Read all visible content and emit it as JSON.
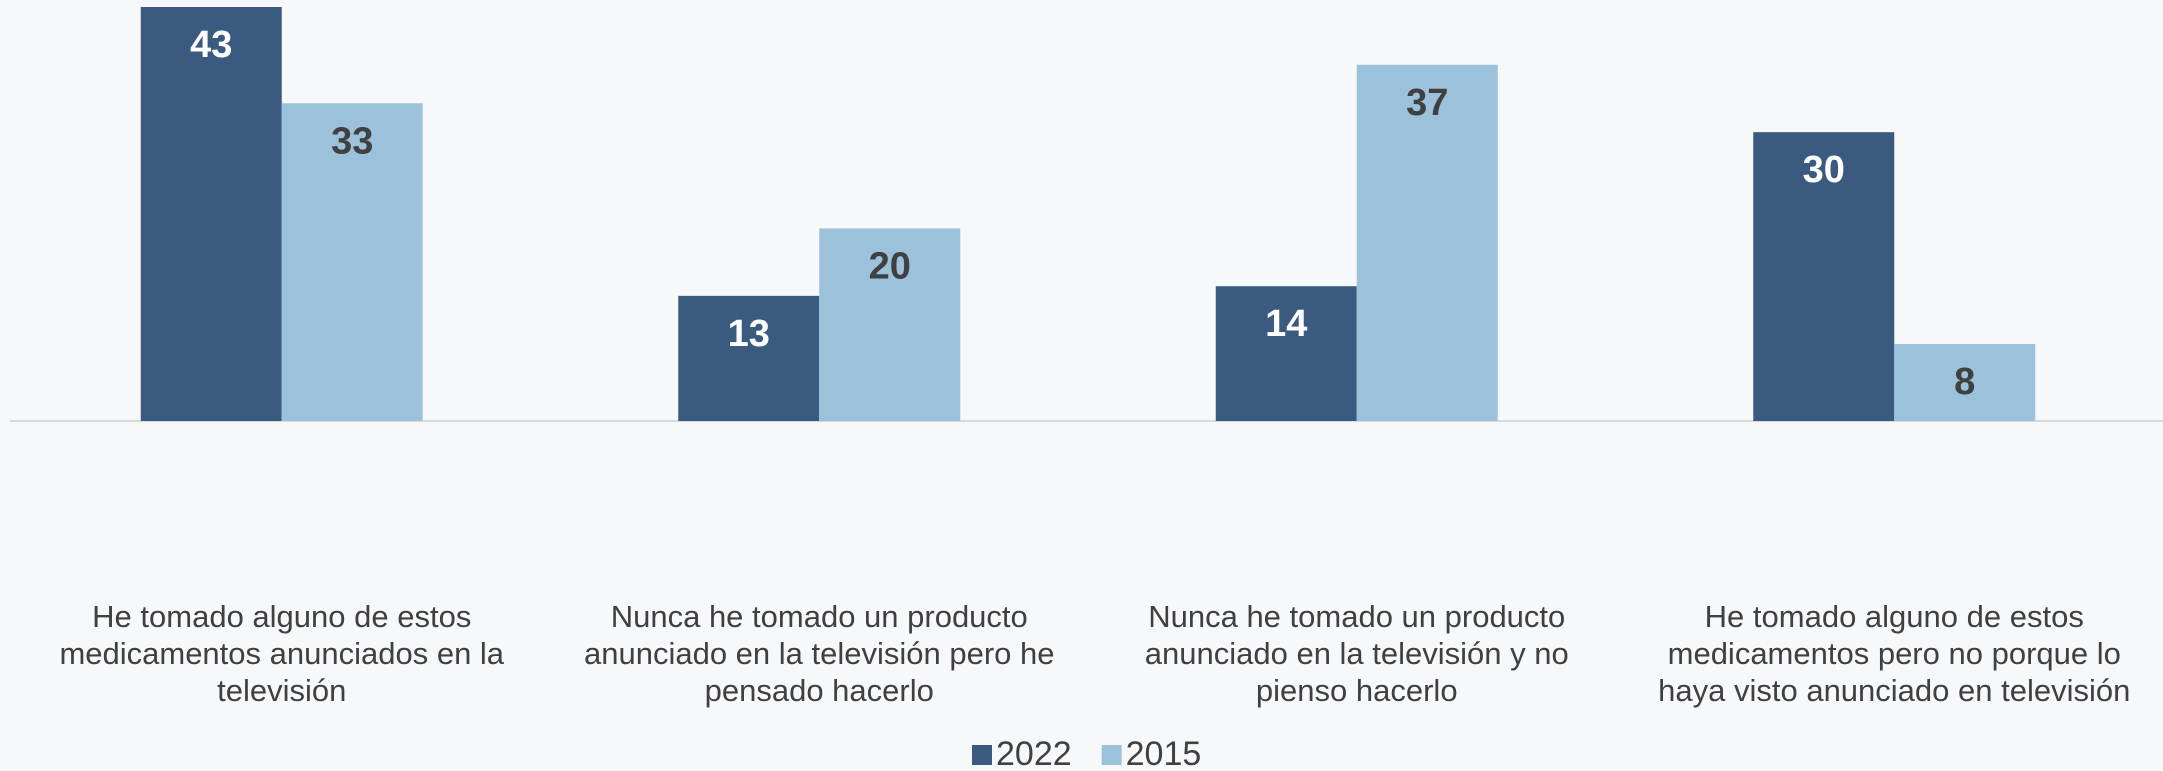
{
  "chart_data": {
    "type": "bar",
    "categories": [
      "He tomado alguno de estos medicamentos anunciados en la televisión",
      "Nunca he tomado un producto anunciado en la televisión pero he pensado hacerlo",
      "Nunca he tomado un producto anunciado en la televisión y no pienso hacerlo",
      "He tomado alguno de estos medicamentos pero no porque lo haya visto anunciado en televisión"
    ],
    "series": [
      {
        "name": "2022",
        "color": "#3b5a80",
        "values": [
          43,
          13,
          14,
          30
        ]
      },
      {
        "name": "2015",
        "color": "#9bc1db",
        "values": [
          33,
          20,
          37,
          8
        ]
      }
    ],
    "legend": "bottom"
  }
}
